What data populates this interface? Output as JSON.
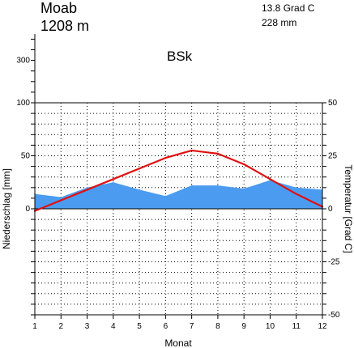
{
  "header": {
    "station": "Moab",
    "elevation": "1208 m",
    "mean_temp": "13.8 Grad C",
    "annual_precip": "228 mm",
    "climate_class": "BSk"
  },
  "chart_data": {
    "type": "line",
    "title": "",
    "xlabel": "Monat",
    "ylabel_left": "Niederschlag [mm]",
    "ylabel_right": "Temperatur [Grad C]",
    "x": [
      1,
      2,
      3,
      4,
      5,
      6,
      7,
      8,
      9,
      10,
      11,
      12
    ],
    "xlim": [
      1,
      12
    ],
    "x_ticks": [
      "1",
      "2",
      "3",
      "4",
      "5",
      "6",
      "7",
      "8",
      "9",
      "10",
      "11",
      "12"
    ],
    "left_ticks": [
      "0",
      "50",
      "100"
    ],
    "left_extra_ticks": [
      "300"
    ],
    "right_ticks": [
      "50",
      "25",
      "0",
      "-25",
      "-50"
    ],
    "ylim_left": [
      -100,
      100
    ],
    "ylim_right": [
      -50,
      50
    ],
    "grid": true,
    "series": [
      {
        "axis": "left",
        "kind": "area",
        "color": "#4b9bf0",
        "values": [
          14,
          11,
          20,
          25,
          18,
          12,
          22,
          22,
          19,
          27,
          20,
          18
        ]
      },
      {
        "axis": "right",
        "kind": "line",
        "color": "#e01010",
        "values": [
          -1,
          4,
          9,
          14,
          19,
          24,
          27.5,
          26,
          21,
          14,
          7,
          1
        ]
      }
    ]
  }
}
